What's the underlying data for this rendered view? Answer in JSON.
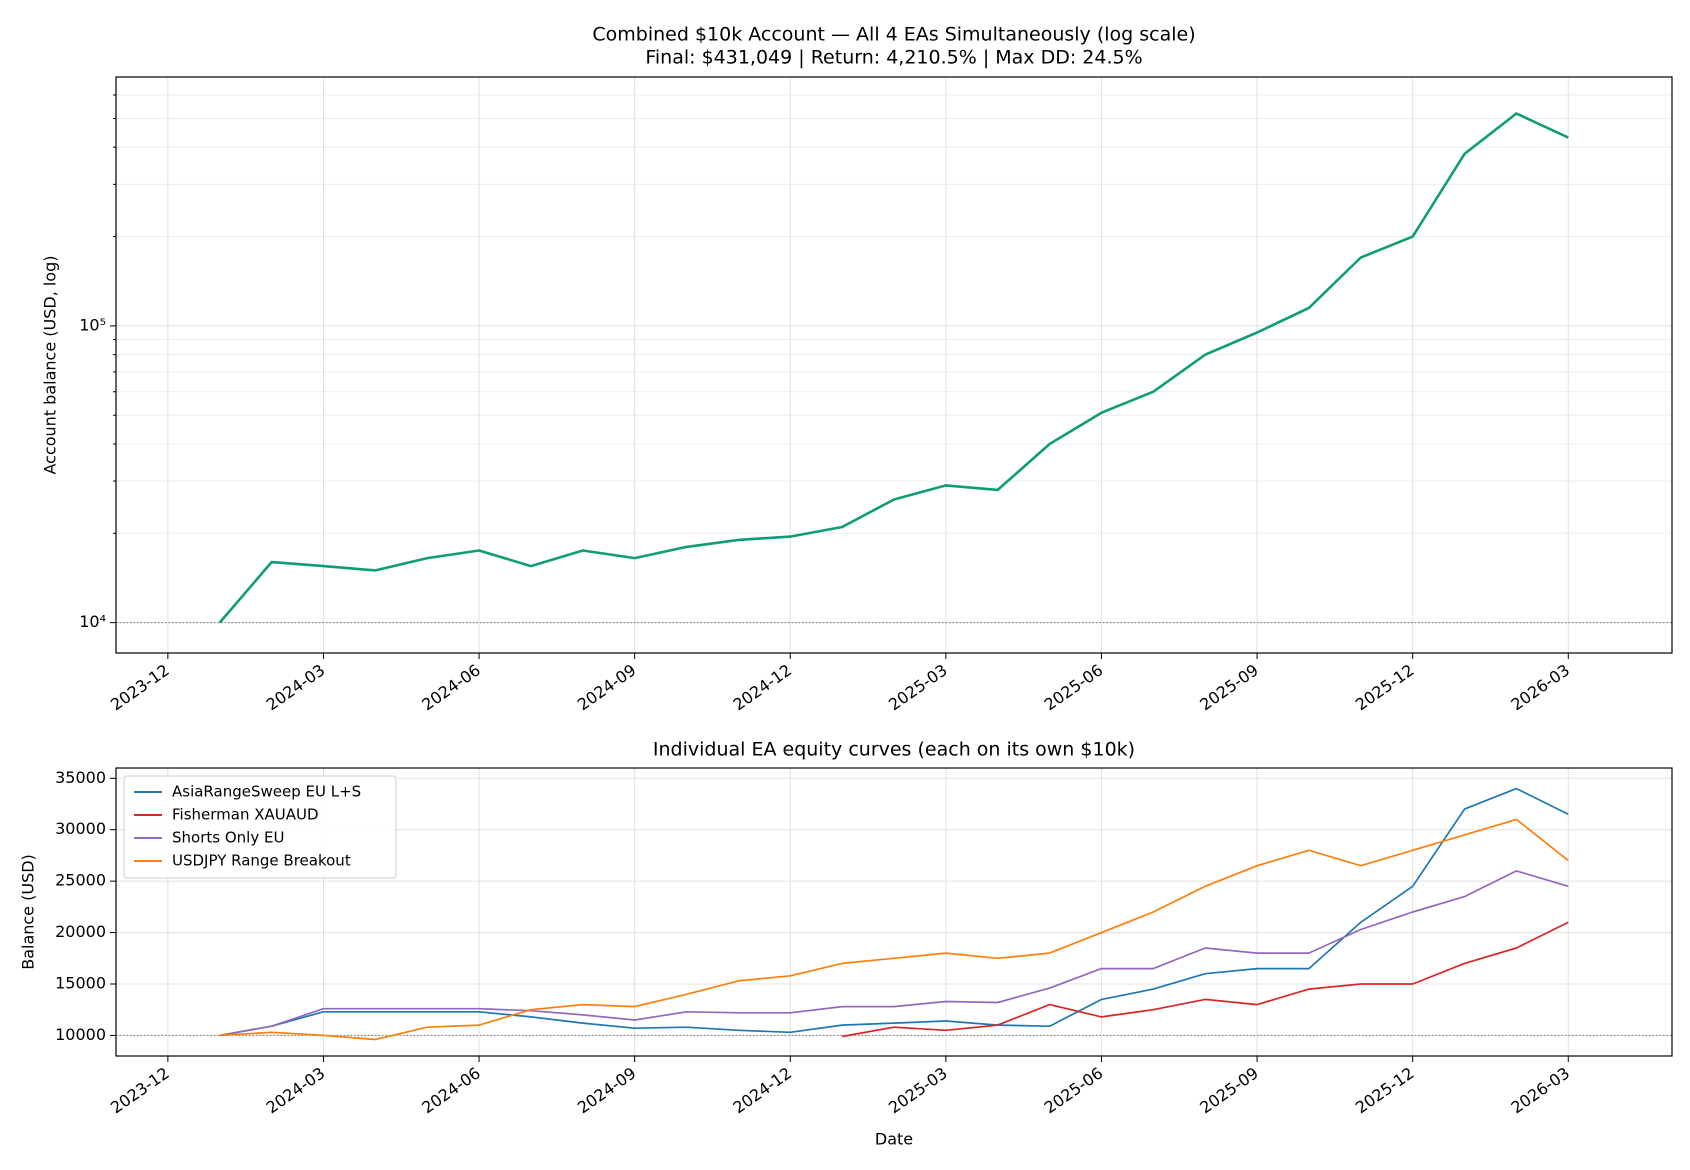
{
  "chart_data": [
    {
      "type": "line",
      "title": "Combined $10k Account — All 4 EAs Simultaneously (log scale)",
      "subtitle": "Final: $431,049  |  Return: 4,210.5%  |  Max DD: 24.5%",
      "ylabel": "Account balance (USD, log)",
      "yscale": "log",
      "grid": true,
      "hline": 10000,
      "x": [
        "2024-01",
        "2024-02",
        "2024-03",
        "2024-04",
        "2024-05",
        "2024-06",
        "2024-07",
        "2024-08",
        "2024-09",
        "2024-10",
        "2024-11",
        "2024-12",
        "2025-01",
        "2025-02",
        "2025-03",
        "2025-04",
        "2025-05",
        "2025-06",
        "2025-07",
        "2025-08",
        "2025-09",
        "2025-10",
        "2025-11",
        "2025-12",
        "2026-01",
        "2026-02",
        "2026-03"
      ],
      "series": [
        {
          "name": "Combined",
          "color": "#0f9d75",
          "values": [
            10000,
            16000,
            15500,
            15000,
            16500,
            17500,
            15500,
            17500,
            16500,
            18000,
            19000,
            19500,
            21000,
            26000,
            29000,
            28000,
            40000,
            51000,
            60000,
            80000,
            95000,
            115000,
            170000,
            200000,
            380000,
            520000,
            431049
          ]
        }
      ],
      "xlim": [
        "2023-11",
        "2026-05"
      ],
      "xticks": [
        "2023-12",
        "2024-03",
        "2024-06",
        "2024-09",
        "2024-12",
        "2025-03",
        "2025-06",
        "2025-09",
        "2025-12",
        "2026-03"
      ],
      "ylim": [
        7900,
        690000
      ],
      "yticks": [
        {
          "value": 10000,
          "label": "10⁴"
        },
        {
          "value": 100000,
          "label": "10⁵"
        }
      ],
      "yticks_minor": [
        20000,
        30000,
        40000,
        50000,
        60000,
        70000,
        80000,
        90000,
        200000,
        300000,
        400000,
        500000,
        600000
      ]
    },
    {
      "type": "line",
      "title": "Individual EA equity curves (each on its own $10k)",
      "xlabel": "Date",
      "ylabel": "Balance (USD)",
      "yscale": "linear",
      "grid": true,
      "hline": 10000,
      "legend": "upper left",
      "x": [
        "2024-01",
        "2024-02",
        "2024-03",
        "2024-04",
        "2024-05",
        "2024-06",
        "2024-07",
        "2024-08",
        "2024-09",
        "2024-10",
        "2024-11",
        "2024-12",
        "2025-01",
        "2025-02",
        "2025-03",
        "2025-04",
        "2025-05",
        "2025-06",
        "2025-07",
        "2025-08",
        "2025-09",
        "2025-10",
        "2025-11",
        "2025-12",
        "2026-01",
        "2026-02",
        "2026-03"
      ],
      "series": [
        {
          "name": "AsiaRangeSweep EU L+S",
          "color": "#1f77b4",
          "values": [
            10000,
            10900,
            12300,
            12300,
            12300,
            12300,
            11800,
            11200,
            10700,
            10800,
            10500,
            10300,
            11000,
            11200,
            11400,
            11000,
            10900,
            13500,
            14500,
            16000,
            16500,
            16500,
            21000,
            24500,
            32000,
            34000,
            31500
          ]
        },
        {
          "name": "Fisherman XAUAUD",
          "color": "#d62728",
          "values": [
            null,
            null,
            null,
            null,
            null,
            null,
            null,
            null,
            null,
            null,
            null,
            null,
            9900,
            10800,
            10500,
            11000,
            13000,
            11800,
            12500,
            13500,
            13000,
            14500,
            15000,
            15000,
            17000,
            18500,
            21000
          ]
        },
        {
          "name": "Shorts Only EU",
          "color": "#9467bd",
          "values": [
            10000,
            10900,
            12600,
            12600,
            12600,
            12600,
            12400,
            12000,
            11500,
            12300,
            12200,
            12200,
            12800,
            12800,
            13300,
            13200,
            14600,
            16500,
            16500,
            18500,
            18000,
            18000,
            20300,
            22000,
            23500,
            26000,
            24500
          ]
        },
        {
          "name": "USDJPY Range Breakout",
          "color": "#ff7f0e",
          "values": [
            10000,
            10300,
            10000,
            9600,
            10800,
            11000,
            12500,
            13000,
            12800,
            14000,
            15300,
            15800,
            17000,
            17500,
            18000,
            17500,
            18000,
            20000,
            22000,
            24500,
            26500,
            28000,
            26500,
            28000,
            29500,
            31000,
            27000
          ]
        }
      ],
      "xlim": [
        "2023-11",
        "2026-05"
      ],
      "xticks": [
        "2023-12",
        "2024-03",
        "2024-06",
        "2024-09",
        "2024-12",
        "2025-03",
        "2025-06",
        "2025-09",
        "2025-12",
        "2026-03"
      ],
      "ylim": [
        8000,
        36000
      ],
      "yticks": [
        10000,
        15000,
        20000,
        25000,
        30000,
        35000
      ]
    }
  ]
}
